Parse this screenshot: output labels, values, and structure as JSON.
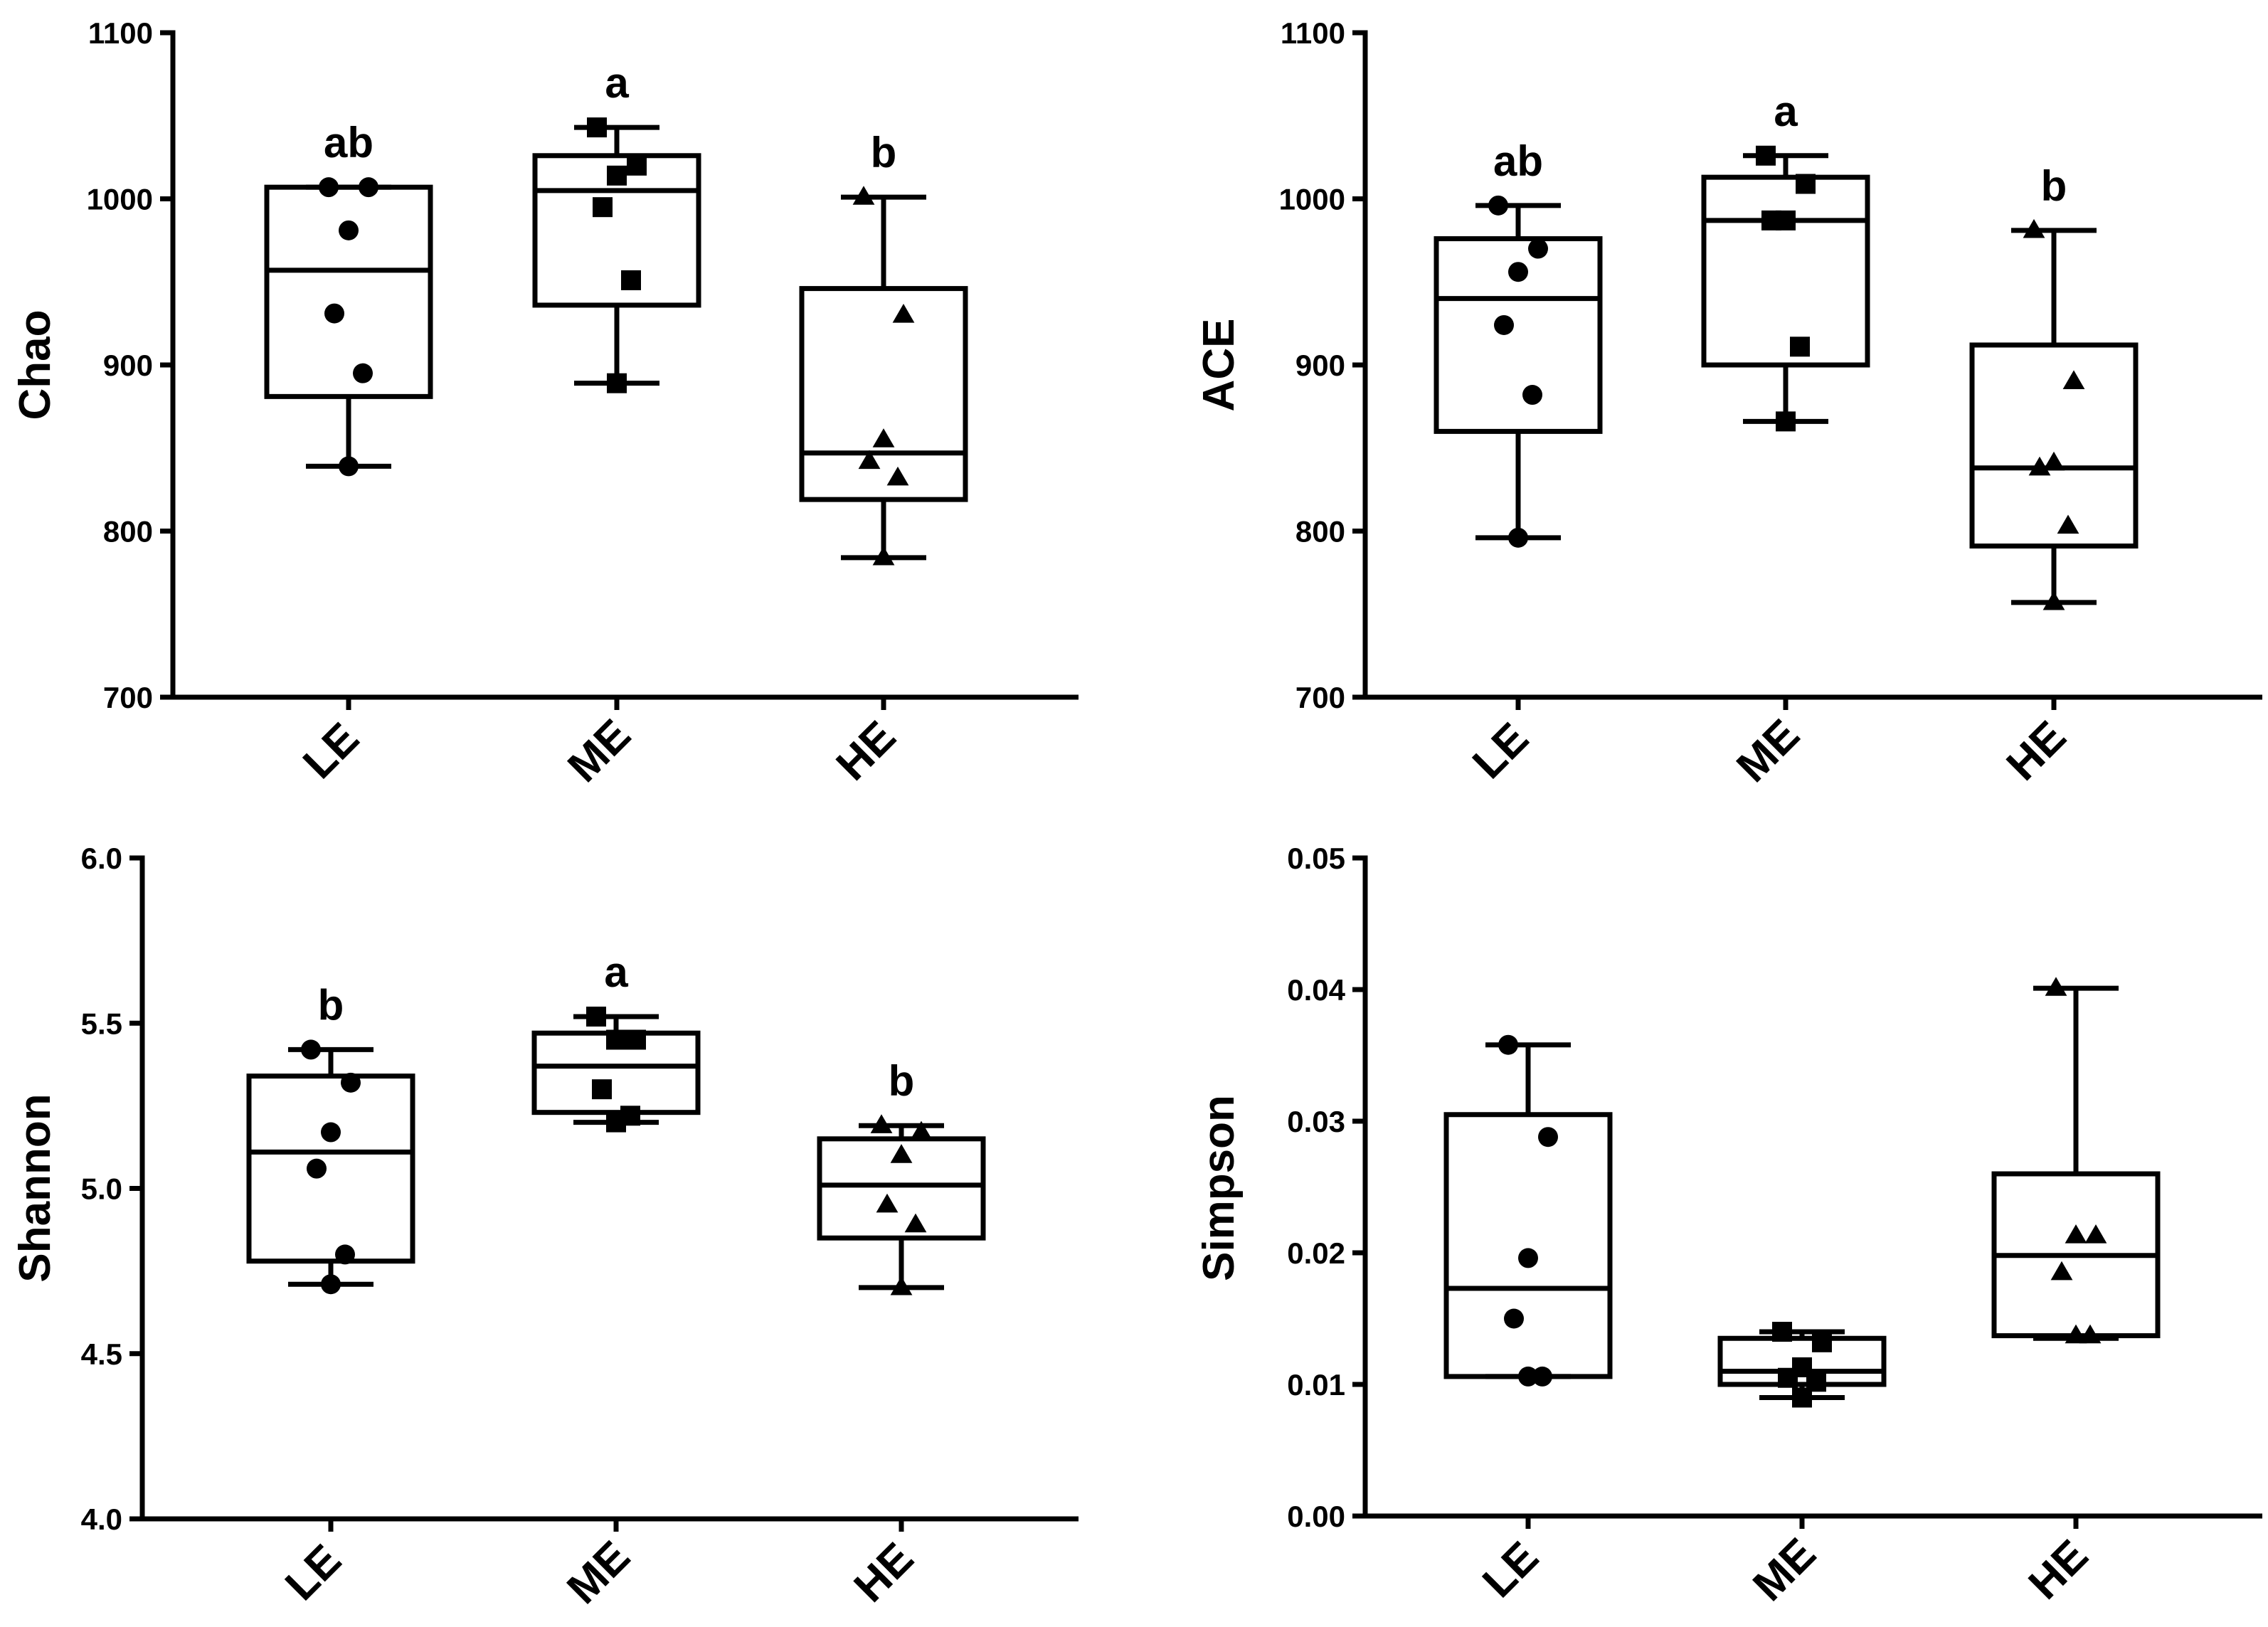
{
  "chart_data": [
    {
      "type": "box",
      "ylabel": "Chao",
      "ylim": [
        700,
        1100
      ],
      "yticks": [
        "700",
        "800",
        "900",
        "1000",
        "1100"
      ],
      "categories": [
        "LE",
        "ME",
        "HE"
      ],
      "groups": [
        {
          "name": "LE",
          "marker": "circle",
          "whisker_low": 839,
          "q1": 881,
          "median": 957,
          "q3": 1007,
          "whisker_high": 1007,
          "points": [
            1007,
            1007,
            981,
            931,
            895,
            839
          ],
          "sig": "ab"
        },
        {
          "name": "ME",
          "marker": "square",
          "whisker_low": 889,
          "q1": 936,
          "median": 1005,
          "q3": 1026,
          "whisker_high": 1043,
          "points": [
            1043,
            1020,
            1014,
            995,
            951,
            889
          ],
          "sig": "a"
        },
        {
          "name": "HE",
          "marker": "triangle",
          "whisker_low": 784,
          "q1": 819,
          "median": 847,
          "q3": 946,
          "whisker_high": 1001,
          "points": [
            1001,
            930,
            855,
            842,
            832,
            784
          ],
          "sig": "b"
        }
      ]
    },
    {
      "type": "box",
      "ylabel": "ACE",
      "ylim": [
        700,
        1100
      ],
      "yticks": [
        "700",
        "800",
        "900",
        "1000",
        "1100"
      ],
      "categories": [
        "LE",
        "ME",
        "HE"
      ],
      "groups": [
        {
          "name": "LE",
          "marker": "circle",
          "whisker_low": 796,
          "q1": 860,
          "median": 940,
          "q3": 976,
          "whisker_high": 996,
          "points": [
            996,
            970,
            956,
            924,
            882,
            796
          ],
          "sig": "ab"
        },
        {
          "name": "ME",
          "marker": "square",
          "whisker_low": 866,
          "q1": 900,
          "median": 987,
          "q3": 1013,
          "whisker_high": 1026,
          "points": [
            1026,
            1009,
            987,
            987,
            911,
            866
          ],
          "sig": "a"
        },
        {
          "name": "HE",
          "marker": "triangle",
          "whisker_low": 757,
          "q1": 791,
          "median": 838,
          "q3": 912,
          "whisker_high": 981,
          "points": [
            981,
            890,
            841,
            838,
            803,
            757
          ],
          "sig": "b"
        }
      ]
    },
    {
      "type": "box",
      "ylabel": "Shannon",
      "ylim": [
        4.0,
        6.0
      ],
      "yticks": [
        "4.0",
        "4.5",
        "5.0",
        "5.5",
        "6.0"
      ],
      "categories": [
        "LE",
        "ME",
        "HE"
      ],
      "groups": [
        {
          "name": "LE",
          "marker": "circle",
          "whisker_low": 4.71,
          "q1": 4.78,
          "median": 5.11,
          "q3": 5.34,
          "whisker_high": 5.42,
          "points": [
            5.42,
            5.32,
            5.17,
            5.06,
            4.8,
            4.71
          ],
          "sig": "b"
        },
        {
          "name": "ME",
          "marker": "square",
          "whisker_low": 5.2,
          "q1": 5.23,
          "median": 5.37,
          "q3": 5.47,
          "whisker_high": 5.52,
          "points": [
            5.52,
            5.45,
            5.45,
            5.3,
            5.22,
            5.2
          ],
          "sig": "a"
        },
        {
          "name": "HE",
          "marker": "triangle",
          "whisker_low": 4.7,
          "q1": 4.85,
          "median": 5.01,
          "q3": 5.15,
          "whisker_high": 5.19,
          "points": [
            5.19,
            5.17,
            5.1,
            4.95,
            4.89,
            4.7
          ],
          "sig": "b"
        }
      ]
    },
    {
      "type": "box",
      "ylabel": "Simpson",
      "ylim": [
        0.0,
        0.05
      ],
      "yticks": [
        "0.00",
        "0.01",
        "0.02",
        "0.03",
        "0.04",
        "0.05"
      ],
      "categories": [
        "LE",
        "ME",
        "HE"
      ],
      "groups": [
        {
          "name": "LE",
          "marker": "circle",
          "whisker_low": 0.0106,
          "q1": 0.0106,
          "median": 0.0173,
          "q3": 0.0305,
          "whisker_high": 0.0358,
          "points": [
            0.0358,
            0.0288,
            0.0196,
            0.015,
            0.0106,
            0.0106
          ],
          "sig": ""
        },
        {
          "name": "ME",
          "marker": "square",
          "whisker_low": 0.009,
          "q1": 0.01,
          "median": 0.011,
          "q3": 0.0135,
          "whisker_high": 0.014,
          "points": [
            0.014,
            0.0132,
            0.0113,
            0.0105,
            0.0102,
            0.009
          ],
          "sig": ""
        },
        {
          "name": "HE",
          "marker": "triangle",
          "whisker_low": 0.0135,
          "q1": 0.0137,
          "median": 0.0198,
          "q3": 0.026,
          "whisker_high": 0.0401,
          "points": [
            0.0401,
            0.0213,
            0.0213,
            0.0185,
            0.0137,
            0.0137
          ],
          "sig": ""
        }
      ]
    }
  ]
}
